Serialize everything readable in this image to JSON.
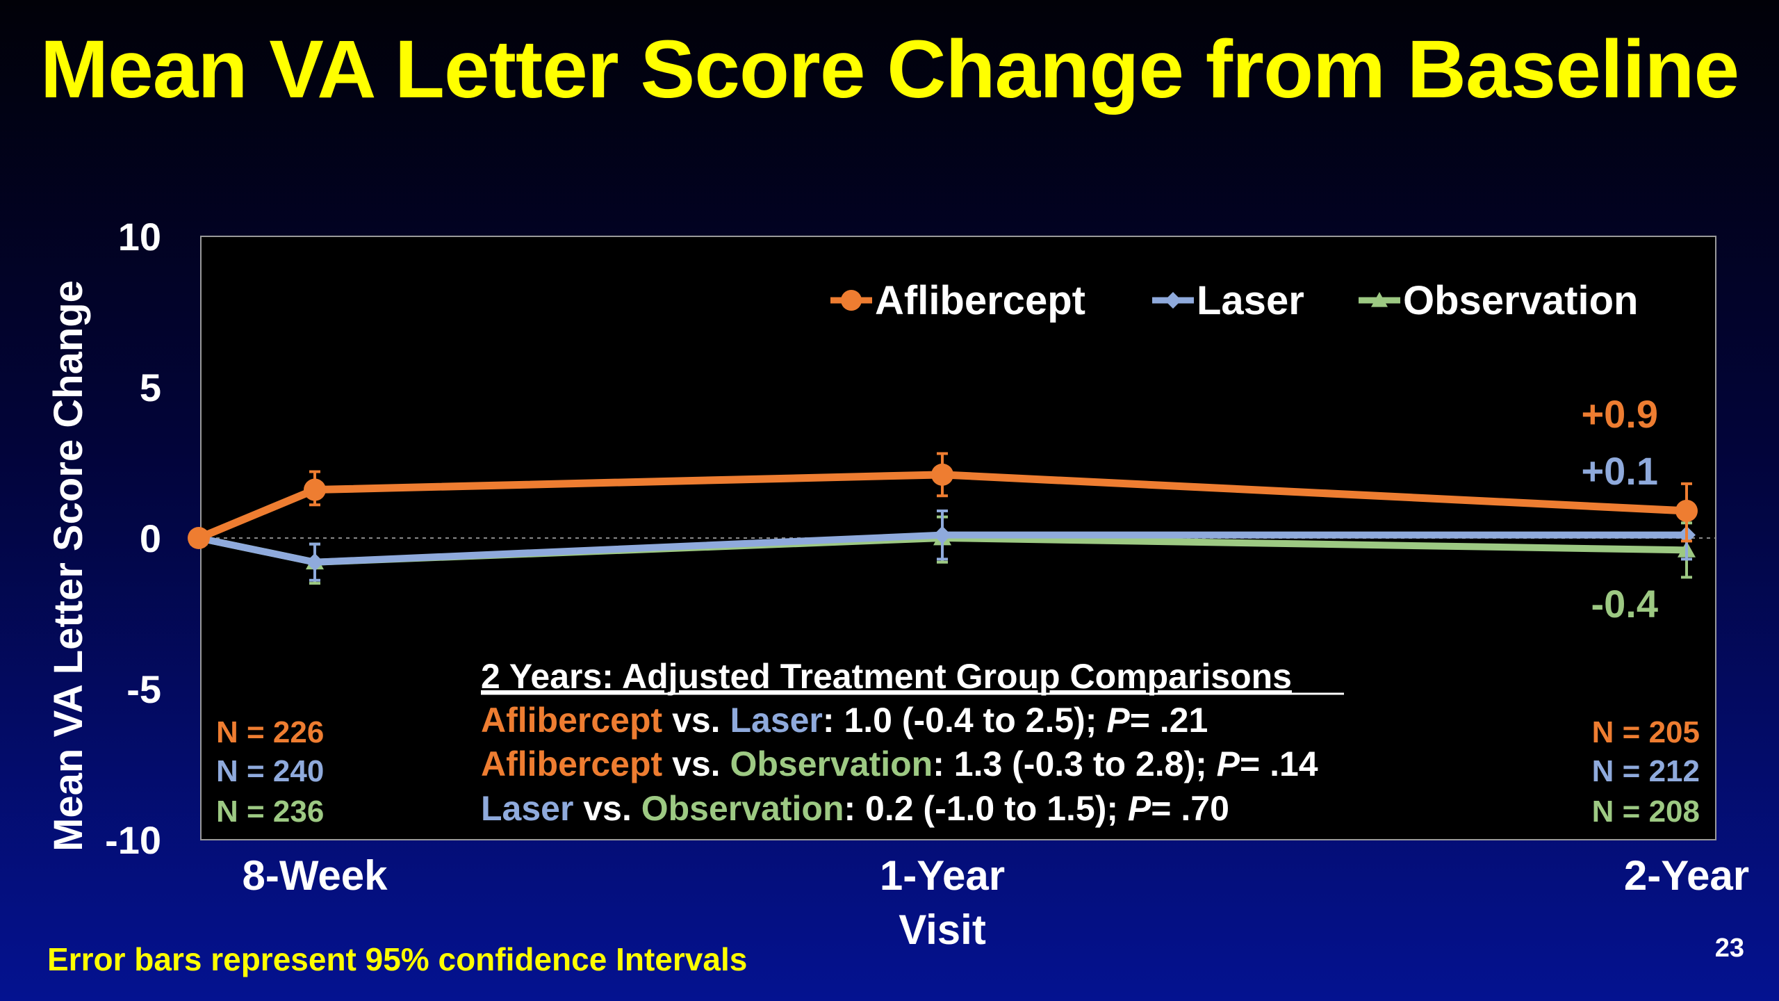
{
  "title": "Mean VA Letter Score Change from Baseline",
  "footnote": "Error bars represent 95% confidence Intervals",
  "page_number": "23",
  "colors": {
    "aflibercept": "#ee7d31",
    "laser": "#8faadc",
    "observation": "#9dc983",
    "title": "#ffff00",
    "text": "#ffffff"
  },
  "chart_data": {
    "type": "line",
    "ylabel": "Mean VA Letter Score Change",
    "xlabel": "Visit",
    "ylim": [
      -10,
      10
    ],
    "yticks": [
      "10",
      "5",
      "0",
      "-5",
      "-10"
    ],
    "x": [
      0,
      8,
      52,
      104
    ],
    "x_tick_labels": [
      {
        "x": 8,
        "label": "8-Week"
      },
      {
        "x": 52,
        "label": "1-Year"
      },
      {
        "x": 104,
        "label": "2-Year"
      }
    ],
    "legend_position": "top-right",
    "series": [
      {
        "key": "aflibercept",
        "name": "Aflibercept",
        "marker": "circle",
        "values": [
          0,
          1.6,
          2.1,
          0.9
        ],
        "ci_low": [
          null,
          1.1,
          1.4,
          -0.1
        ],
        "ci_high": [
          null,
          2.2,
          2.8,
          1.8
        ]
      },
      {
        "key": "laser",
        "name": "Laser",
        "marker": "diamond",
        "values": [
          0,
          -0.8,
          0.1,
          0.1
        ],
        "ci_low": [
          null,
          -1.4,
          -0.7,
          -0.7
        ],
        "ci_high": [
          null,
          -0.2,
          0.9,
          0.9
        ]
      },
      {
        "key": "observation",
        "name": "Observation",
        "marker": "triangle",
        "values": [
          0,
          -0.8,
          0.0,
          -0.4
        ],
        "ci_low": [
          null,
          -1.5,
          -0.8,
          -1.3
        ],
        "ci_high": [
          null,
          -0.2,
          0.7,
          0.5
        ]
      }
    ],
    "end_labels": [
      {
        "key": "aflibercept",
        "text": "+0.9"
      },
      {
        "key": "laser",
        "text": "+0.1"
      },
      {
        "key": "observation",
        "text": "-0.4"
      }
    ],
    "n_left": [
      {
        "key": "aflibercept",
        "text": "N = 226"
      },
      {
        "key": "laser",
        "text": "N = 240"
      },
      {
        "key": "observation",
        "text": "N = 236"
      }
    ],
    "n_right": [
      {
        "key": "aflibercept",
        "text": "N = 205"
      },
      {
        "key": "laser",
        "text": "N = 212"
      },
      {
        "key": "observation",
        "text": "N = 208"
      }
    ],
    "comparisons": {
      "heading": "2 Years: Adjusted Treatment Group Comparisons",
      "rows": [
        {
          "a": "Aflibercept",
          "a_key": "aflibercept",
          "vs": " vs. ",
          "b": "Laser",
          "b_key": "laser",
          "stat": ": 1.0 (-0.4 to 2.5); ",
          "p_label": "P",
          "p_value": "= .21"
        },
        {
          "a": "Aflibercept",
          "a_key": "aflibercept",
          "vs": " vs. ",
          "b": "Observation",
          "b_key": "observation",
          "stat": ": 1.3 (-0.3 to 2.8); ",
          "p_label": "P",
          "p_value": "= .14"
        },
        {
          "a": "Laser",
          "a_key": "laser",
          "vs": " vs. ",
          "b": "Observation",
          "b_key": "observation",
          "stat": ": 0.2 (-1.0 to 1.5); ",
          "p_label": "P",
          "p_value": "= .70"
        }
      ]
    }
  }
}
